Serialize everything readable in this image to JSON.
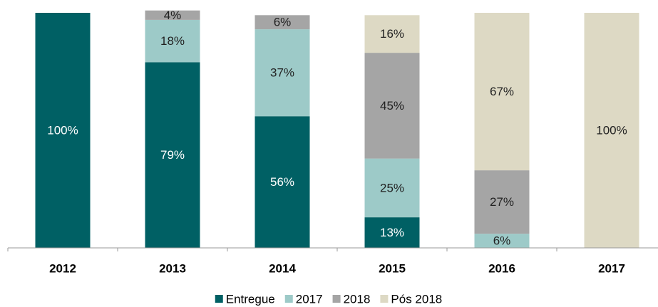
{
  "chart_data": {
    "type": "stacked_bar",
    "categories": [
      "2012",
      "2013",
      "2014",
      "2015",
      "2016",
      "2017"
    ],
    "series": [
      {
        "name": "Entregue",
        "color": "#006064",
        "values": [
          100,
          79,
          56,
          13,
          null,
          null
        ],
        "value_labels": [
          "100%",
          "79%",
          "56%",
          "13%",
          null,
          null
        ]
      },
      {
        "name": "2017",
        "color": "#9dcac8",
        "values": [
          null,
          18,
          37,
          25,
          6,
          null
        ],
        "value_labels": [
          null,
          "18%",
          "37%",
          "25%",
          "6%",
          null
        ]
      },
      {
        "name": "2018",
        "color": "#a5a5a5",
        "values": [
          null,
          4,
          6,
          45,
          27,
          null
        ],
        "value_labels": [
          null,
          "4%",
          "6%",
          "45%",
          "27%",
          null
        ]
      },
      {
        "name": "Pós 2018",
        "color": "#ddd9c4",
        "values": [
          null,
          null,
          null,
          16,
          67,
          100
        ],
        "value_labels": [
          null,
          null,
          null,
          "16%",
          "67%",
          "100%"
        ]
      }
    ],
    "ylim": [
      0,
      100
    ],
    "legend": "bottom"
  }
}
